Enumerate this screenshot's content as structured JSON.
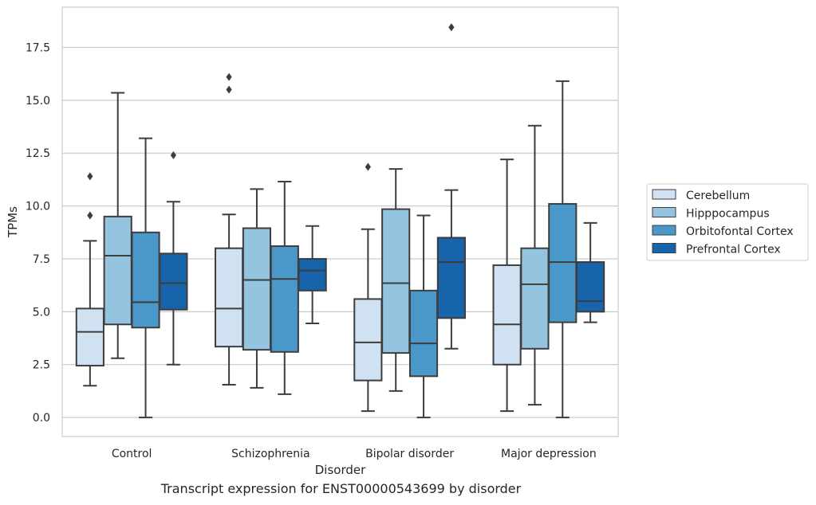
{
  "caption": "Transcript expression for ENST00000543699 by disorder",
  "chart_data": {
    "type": "box",
    "xlabel": "Disorder",
    "ylabel": "TPMs",
    "ylim": [
      -0.9,
      19.4
    ],
    "yticks": [
      0.0,
      2.5,
      5.0,
      7.5,
      10.0,
      12.5,
      15.0,
      17.5
    ],
    "ytick_labels": [
      "0.0",
      "2.5",
      "5.0",
      "7.5",
      "10.0",
      "12.5",
      "15.0",
      "17.5"
    ],
    "grid": "horizontal",
    "legend_position": "right",
    "categories": [
      "Control",
      "Schizophrenia",
      "Bipolar disorder",
      "Major depression"
    ],
    "series": [
      {
        "name": "Cerebellum",
        "color": "#d0e1f2",
        "boxes": [
          {
            "whislo": 1.5,
            "q1": 2.45,
            "med": 4.05,
            "q3": 5.15,
            "whishi": 8.35,
            "fliers": [
              9.55,
              11.4
            ]
          },
          {
            "whislo": 1.55,
            "q1": 3.35,
            "med": 5.15,
            "q3": 8.0,
            "whishi": 9.6,
            "fliers": [
              15.5,
              16.1
            ]
          },
          {
            "whislo": 0.3,
            "q1": 1.75,
            "med": 3.55,
            "q3": 5.6,
            "whishi": 8.9,
            "fliers": [
              11.85
            ]
          },
          {
            "whislo": 0.3,
            "q1": 2.5,
            "med": 4.4,
            "q3": 7.2,
            "whishi": 12.2,
            "fliers": []
          }
        ]
      },
      {
        "name": "Hipppocampus",
        "color": "#94c4df",
        "boxes": [
          {
            "whislo": 2.8,
            "q1": 4.4,
            "med": 7.65,
            "q3": 9.5,
            "whishi": 15.35,
            "fliers": []
          },
          {
            "whislo": 1.4,
            "q1": 3.2,
            "med": 6.5,
            "q3": 8.95,
            "whishi": 10.8,
            "fliers": []
          },
          {
            "whislo": 1.25,
            "q1": 3.05,
            "med": 6.35,
            "q3": 9.85,
            "whishi": 11.75,
            "fliers": []
          },
          {
            "whislo": 0.6,
            "q1": 3.25,
            "med": 6.3,
            "q3": 8.0,
            "whishi": 13.8,
            "fliers": []
          }
        ]
      },
      {
        "name": "Orbitofontal Cortex",
        "color": "#4a98c9",
        "boxes": [
          {
            "whislo": 0.0,
            "q1": 4.25,
            "med": 5.45,
            "q3": 8.75,
            "whishi": 13.2,
            "fliers": []
          },
          {
            "whislo": 1.1,
            "q1": 3.1,
            "med": 6.55,
            "q3": 8.1,
            "whishi": 11.15,
            "fliers": []
          },
          {
            "whislo": 0.0,
            "q1": 1.95,
            "med": 3.5,
            "q3": 6.0,
            "whishi": 9.55,
            "fliers": []
          },
          {
            "whislo": 0.0,
            "q1": 4.5,
            "med": 7.35,
            "q3": 10.1,
            "whishi": 15.9,
            "fliers": []
          }
        ]
      },
      {
        "name": "Prefrontal Cortex",
        "color": "#1764ab",
        "boxes": [
          {
            "whislo": 2.5,
            "q1": 5.1,
            "med": 6.35,
            "q3": 7.75,
            "whishi": 10.2,
            "fliers": [
              12.4
            ]
          },
          {
            "whislo": 4.45,
            "q1": 6.0,
            "med": 6.95,
            "q3": 7.5,
            "whishi": 9.05,
            "fliers": []
          },
          {
            "whislo": 3.25,
            "q1": 4.7,
            "med": 7.35,
            "q3": 8.5,
            "whishi": 10.75,
            "fliers": [
              18.45
            ]
          },
          {
            "whislo": 4.5,
            "q1": 5.0,
            "med": 5.5,
            "q3": 7.35,
            "whishi": 9.2,
            "fliers": []
          }
        ]
      }
    ]
  }
}
